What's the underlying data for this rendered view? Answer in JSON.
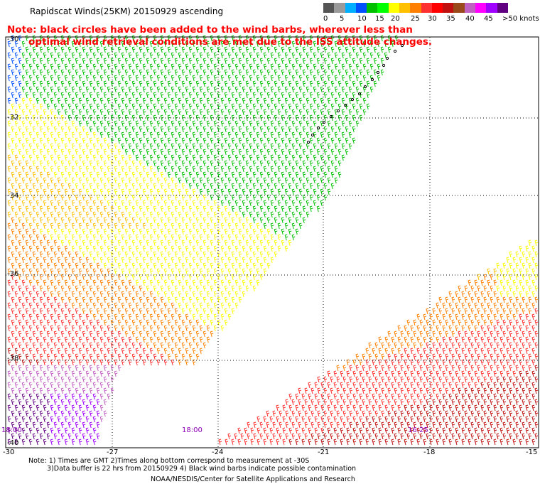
{
  "header": {
    "title": "Rapidscat Winds(25KM) 20150929 ascending",
    "note_line1": "Note: black circles have been added to the wind barbs, wherever less than",
    "note_line2": "optimal wind retrieval conditions are met due to the ISS attitude changes."
  },
  "legend": {
    "labels": [
      "0",
      "5",
      "10",
      "15",
      "20",
      "25",
      "30",
      "35",
      "40",
      "45",
      ">50 knots"
    ],
    "colors": [
      "#555555",
      "#9a9a9a",
      "#00b0ff",
      "#0050ff",
      "#00c000",
      "#00ff00",
      "#ffff00",
      "#ffc000",
      "#ff8000",
      "#ff3030",
      "#ff0000",
      "#c01010",
      "#9a4a1a",
      "#c060c0",
      "#ff00ff",
      "#a000ff",
      "#600080"
    ]
  },
  "axes": {
    "lat_labels": [
      "-30",
      "-32",
      "-34",
      "-36",
      "-38",
      "-40"
    ],
    "lon_labels": [
      "-30",
      "-27",
      "-24",
      "-21",
      "-18",
      "-15"
    ]
  },
  "times": [
    "18:00",
    "18:00",
    "16:25"
  ],
  "footer": {
    "line1": "Note: 1) Times are GMT 2)Times along bottom correspond to measurement at -30S",
    "line2": "3)Data buffer is 22 hrs from 20150929 4) Black wind barbs indicate possible contamination",
    "line3": "NOAA/NESDIS/Center for Satellite Applications and Research"
  }
}
